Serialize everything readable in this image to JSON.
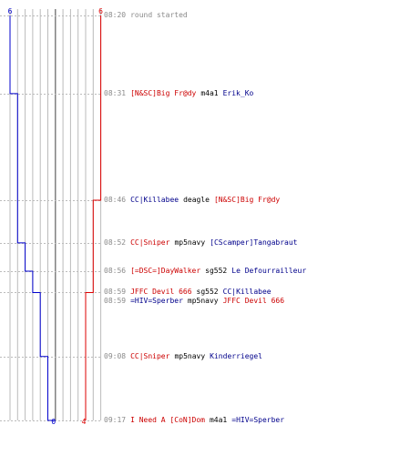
{
  "colors": {
    "blue": "#0000cc",
    "red": "#dd0000",
    "grid": "#bbbbbb",
    "center": "#777777",
    "time": "#8a8a8a"
  },
  "chart_data": {
    "type": "line",
    "x_unit": "round time (mm:ss)",
    "ylim": [
      0,
      6
    ],
    "start_label": {
      "blue": "6",
      "red": "6"
    },
    "end_label": {
      "blue": "0",
      "red": "4"
    },
    "series": [
      {
        "color": "blue",
        "times": [
          "08:20",
          "08:31",
          "08:52",
          "08:56",
          "08:59",
          "09:08",
          "09:17"
        ],
        "values": [
          6,
          5,
          4,
          3,
          2,
          1,
          0
        ]
      },
      {
        "color": "red",
        "times": [
          "08:20",
          "08:46",
          "08:59",
          "09:17"
        ],
        "values": [
          6,
          5,
          4,
          4
        ]
      }
    ]
  },
  "events": [
    {
      "time": "08:20",
      "text": "round started"
    },
    {
      "time": "08:31",
      "killer": "[N&SC]Big Fr@dy",
      "killer_team": "red",
      "weapon": "m4a1",
      "victim": "Erik_Ko",
      "victim_team": "blue"
    },
    {
      "time": "08:46",
      "killer": "CC|Killabee",
      "killer_team": "blue",
      "weapon": "deagle",
      "victim": "[N&SC]Big Fr@dy",
      "victim_team": "red"
    },
    {
      "time": "08:52",
      "killer": "CC|Sniper",
      "killer_team": "red",
      "weapon": "mp5navy",
      "victim": "[CScamper]Tangabraut",
      "victim_team": "blue"
    },
    {
      "time": "08:56",
      "killer": "[=DSC=]DayWalker",
      "killer_team": "red",
      "weapon": "sg552",
      "victim": "Le Defourrailleur",
      "victim_team": "blue"
    },
    {
      "time": "08:59",
      "killer": "JFFC Devil 666",
      "killer_team": "red",
      "weapon": "sg552",
      "victim": "CC|Killabee",
      "victim_team": "blue"
    },
    {
      "time": "08:59",
      "killer": "=HIV=Sperber",
      "killer_team": "blue",
      "weapon": "mp5navy",
      "victim": "JFFC Devil 666",
      "victim_team": "red"
    },
    {
      "time": "09:08",
      "killer": "CC|Sniper",
      "killer_team": "red",
      "weapon": "mp5navy",
      "victim": "Kinderriegel",
      "victim_team": "blue"
    },
    {
      "time": "09:17",
      "killer": "I Need A [CoN]Dom",
      "killer_team": "red",
      "weapon": "m4a1",
      "victim": "=HIV=Sperber",
      "victim_team": "blue"
    }
  ]
}
